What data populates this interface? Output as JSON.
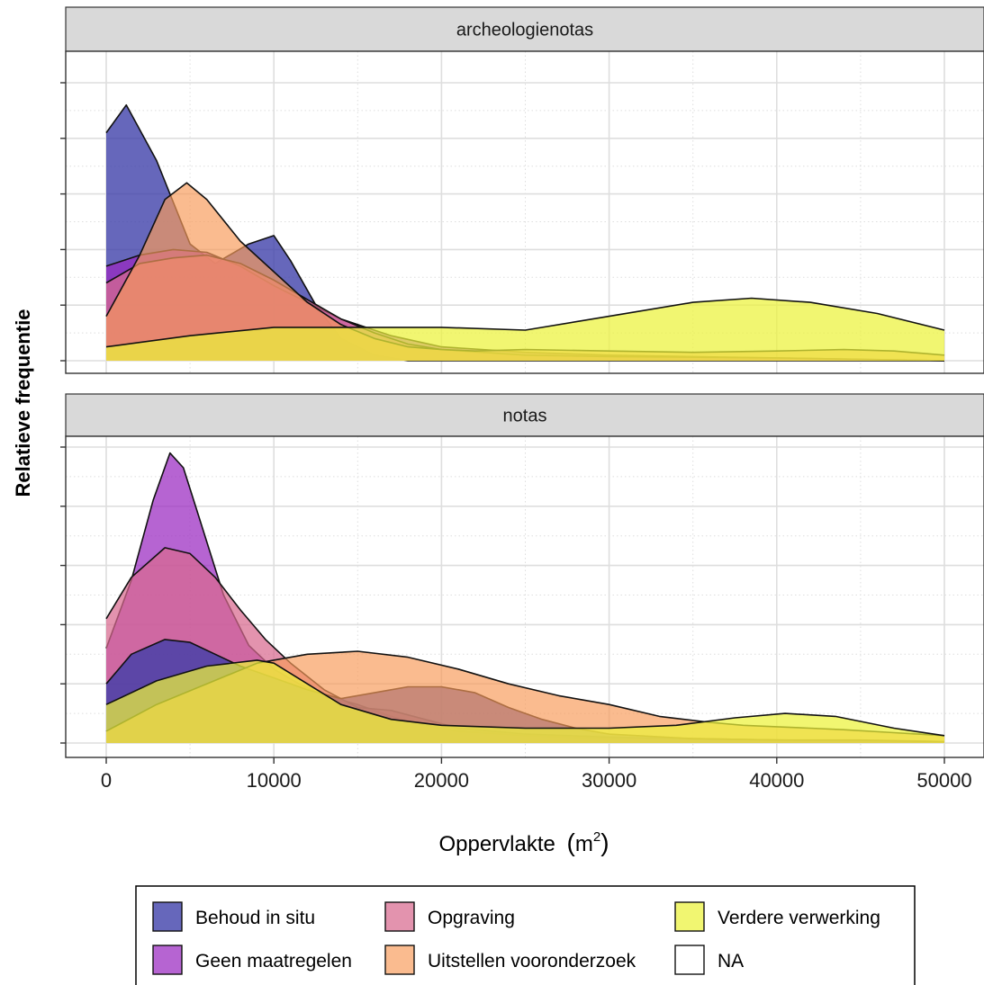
{
  "chart_data": {
    "type": "area",
    "subtype": "density",
    "ylabel": "Relatieve frequentie",
    "xlabel": "Oppervlakte",
    "xlabel_unit_base": "m",
    "xlabel_unit_sup": "2",
    "xlim": [
      -1000,
      52000
    ],
    "x_ticks": [
      "0",
      "10000",
      "20000",
      "30000",
      "40000",
      "50000"
    ],
    "x_tick_values": [
      0,
      10000,
      20000,
      30000,
      40000,
      50000
    ],
    "ylim": [
      0,
      1
    ],
    "y_tick_labels_shown": false,
    "grid": true,
    "legend_position": "bottom",
    "legend": [
      {
        "name": "Behoud in situ",
        "color": "#3b3ca8"
      },
      {
        "name": "Geen maatregelen",
        "color": "#9a28c0"
      },
      {
        "name": "Opgraving",
        "color": "#d8698f"
      },
      {
        "name": "Uitstellen vooronderzoek",
        "color": "#f89b5a"
      },
      {
        "name": "NA",
        "color": "#ffffff"
      },
      {
        "name": "Verdere verwerking",
        "color": "#ecf23a"
      }
    ],
    "panels": [
      {
        "strip": "archeologienotas",
        "series": [
          {
            "name": "Behoud in situ",
            "color": "#3b3ca8",
            "points": [
              [
                0,
                0.82
              ],
              [
                1200,
                0.92
              ],
              [
                3000,
                0.72
              ],
              [
                5000,
                0.42
              ],
              [
                6500,
                0.35
              ],
              [
                8500,
                0.42
              ],
              [
                10000,
                0.45
              ],
              [
                11000,
                0.36
              ],
              [
                12500,
                0.2
              ],
              [
                14000,
                0.08
              ],
              [
                16000,
                0.02
              ],
              [
                18000,
                0.0
              ],
              [
                50000,
                0.0
              ]
            ]
          },
          {
            "name": "Geen maatregelen",
            "color": "#9a28c0",
            "points": [
              [
                0,
                0.34
              ],
              [
                2000,
                0.38
              ],
              [
                4000,
                0.4
              ],
              [
                6000,
                0.39
              ],
              [
                8000,
                0.34
              ],
              [
                10000,
                0.27
              ],
              [
                12000,
                0.21
              ],
              [
                14000,
                0.15
              ],
              [
                17000,
                0.09
              ],
              [
                20000,
                0.05
              ],
              [
                25000,
                0.03
              ],
              [
                30000,
                0.02
              ],
              [
                35000,
                0.015
              ],
              [
                40000,
                0.01
              ],
              [
                45000,
                0.005
              ],
              [
                50000,
                0.0
              ]
            ]
          },
          {
            "name": "Opgraving",
            "color": "#d8698f",
            "points": [
              [
                0,
                0.28
              ],
              [
                2000,
                0.35
              ],
              [
                4000,
                0.37
              ],
              [
                6000,
                0.38
              ],
              [
                8000,
                0.35
              ],
              [
                10000,
                0.29
              ],
              [
                12000,
                0.22
              ],
              [
                14000,
                0.15
              ],
              [
                16000,
                0.1
              ],
              [
                18000,
                0.06
              ],
              [
                20000,
                0.04
              ],
              [
                25000,
                0.02
              ],
              [
                30000,
                0.015
              ],
              [
                40000,
                0.01
              ],
              [
                50000,
                0.0
              ]
            ]
          },
          {
            "name": "Uitstellen vooronderzoek",
            "color": "#f89b5a",
            "points": [
              [
                0,
                0.16
              ],
              [
                2000,
                0.38
              ],
              [
                3500,
                0.58
              ],
              [
                4800,
                0.64
              ],
              [
                6000,
                0.58
              ],
              [
                8000,
                0.43
              ],
              [
                10000,
                0.32
              ],
              [
                12000,
                0.21
              ],
              [
                14000,
                0.13
              ],
              [
                16000,
                0.08
              ],
              [
                18000,
                0.05
              ],
              [
                20000,
                0.04
              ],
              [
                22000,
                0.035
              ],
              [
                25000,
                0.04
              ],
              [
                30000,
                0.035
              ],
              [
                35000,
                0.03
              ],
              [
                40000,
                0.035
              ],
              [
                44000,
                0.04
              ],
              [
                47000,
                0.035
              ],
              [
                50000,
                0.02
              ]
            ]
          },
          {
            "name": "Verdere verwerking",
            "color": "#ecf23a",
            "points": [
              [
                0,
                0.05
              ],
              [
                5000,
                0.09
              ],
              [
                10000,
                0.12
              ],
              [
                15000,
                0.12
              ],
              [
                20000,
                0.12
              ],
              [
                25000,
                0.11
              ],
              [
                30000,
                0.16
              ],
              [
                35000,
                0.21
              ],
              [
                38500,
                0.225
              ],
              [
                42000,
                0.21
              ],
              [
                46000,
                0.17
              ],
              [
                50000,
                0.11
              ]
            ]
          }
        ]
      },
      {
        "strip": "notas",
        "series": [
          {
            "name": "Geen maatregelen",
            "color": "#9a28c0",
            "points": [
              [
                0,
                0.32
              ],
              [
                1500,
                0.55
              ],
              [
                2800,
                0.82
              ],
              [
                3800,
                0.98
              ],
              [
                4600,
                0.93
              ],
              [
                5500,
                0.77
              ],
              [
                7000,
                0.5
              ],
              [
                8500,
                0.33
              ],
              [
                10000,
                0.25
              ],
              [
                11500,
                0.2
              ],
              [
                13000,
                0.16
              ],
              [
                15000,
                0.13
              ],
              [
                17000,
                0.09
              ],
              [
                19000,
                0.06
              ],
              [
                21000,
                0.04
              ],
              [
                25000,
                0.025
              ],
              [
                30000,
                0.015
              ],
              [
                40000,
                0.01
              ],
              [
                50000,
                0.005
              ]
            ]
          },
          {
            "name": "Opgraving",
            "color": "#d8698f",
            "points": [
              [
                0,
                0.42
              ],
              [
                1500,
                0.56
              ],
              [
                3500,
                0.66
              ],
              [
                5000,
                0.64
              ],
              [
                6500,
                0.56
              ],
              [
                8000,
                0.45
              ],
              [
                9500,
                0.35
              ],
              [
                11000,
                0.27
              ],
              [
                13000,
                0.18
              ],
              [
                15000,
                0.12
              ],
              [
                17000,
                0.11
              ],
              [
                19000,
                0.08
              ],
              [
                21000,
                0.05
              ],
              [
                25000,
                0.03
              ],
              [
                30000,
                0.02
              ],
              [
                40000,
                0.01
              ],
              [
                50000,
                0.005
              ]
            ]
          },
          {
            "name": "Behoud in situ",
            "color": "#3b3ca8",
            "points": [
              [
                0,
                0.2
              ],
              [
                1500,
                0.3
              ],
              [
                3500,
                0.35
              ],
              [
                5000,
                0.34
              ],
              [
                6500,
                0.3
              ],
              [
                8000,
                0.26
              ],
              [
                10000,
                0.22
              ],
              [
                12000,
                0.18
              ],
              [
                14000,
                0.15
              ],
              [
                16000,
                0.17
              ],
              [
                18000,
                0.19
              ],
              [
                20000,
                0.19
              ],
              [
                22000,
                0.17
              ],
              [
                24000,
                0.12
              ],
              [
                26000,
                0.08
              ],
              [
                28000,
                0.05
              ],
              [
                30000,
                0.03
              ],
              [
                35000,
                0.015
              ],
              [
                40000,
                0.01
              ],
              [
                45000,
                0.01
              ],
              [
                50000,
                0.005
              ]
            ]
          },
          {
            "name": "Uitstellen vooronderzoek",
            "color": "#f89b5a",
            "points": [
              [
                0,
                0.04
              ],
              [
                3000,
                0.13
              ],
              [
                6000,
                0.2
              ],
              [
                9000,
                0.27
              ],
              [
                12000,
                0.3
              ],
              [
                15000,
                0.31
              ],
              [
                18000,
                0.29
              ],
              [
                21000,
                0.25
              ],
              [
                24000,
                0.2
              ],
              [
                27000,
                0.16
              ],
              [
                30000,
                0.13
              ],
              [
                33000,
                0.09
              ],
              [
                36000,
                0.07
              ],
              [
                38000,
                0.06
              ],
              [
                40000,
                0.055
              ],
              [
                42000,
                0.05
              ],
              [
                44000,
                0.045
              ],
              [
                47000,
                0.035
              ],
              [
                50000,
                0.025
              ]
            ]
          },
          {
            "name": "Verdere verwerking",
            "color": "#ecf23a",
            "points": [
              [
                0,
                0.13
              ],
              [
                3000,
                0.21
              ],
              [
                6000,
                0.26
              ],
              [
                9000,
                0.28
              ],
              [
                10000,
                0.27
              ],
              [
                12000,
                0.2
              ],
              [
                14000,
                0.13
              ],
              [
                17000,
                0.08
              ],
              [
                20000,
                0.06
              ],
              [
                25000,
                0.05
              ],
              [
                30000,
                0.05
              ],
              [
                34000,
                0.06
              ],
              [
                37500,
                0.085
              ],
              [
                40500,
                0.1
              ],
              [
                43500,
                0.09
              ],
              [
                47000,
                0.05
              ],
              [
                50000,
                0.025
              ]
            ]
          }
        ]
      }
    ]
  }
}
